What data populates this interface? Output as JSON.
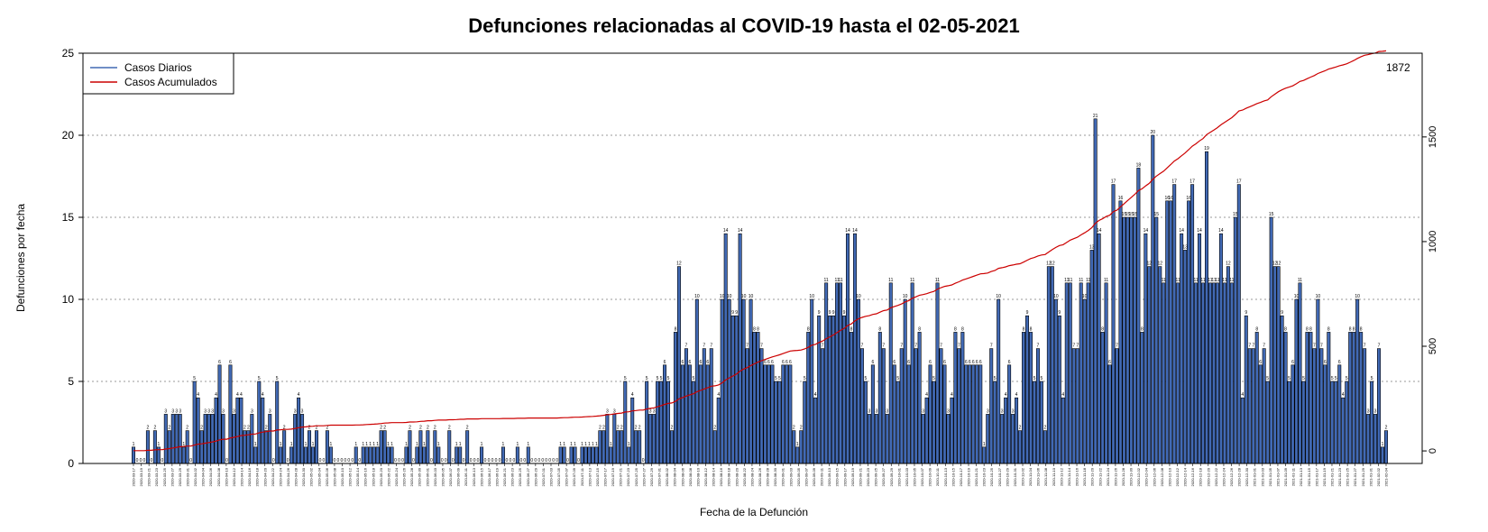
{
  "chart_data": {
    "type": "bar",
    "title": "Defunciones relacionadas al COVID-19 hasta el 02-05-2021",
    "xlabel": "Fecha de la Defunción",
    "ylabel": "Defunciones por fecha",
    "ylim": [
      0,
      25
    ],
    "yticks": [
      0,
      5,
      10,
      15,
      20,
      25
    ],
    "y2lim": [
      -60,
      1900
    ],
    "y2ticks": [
      0,
      500,
      1000,
      1500
    ],
    "grid": "horizontal dotted",
    "legend_position": "top-left",
    "cumulative_end_label": "1872",
    "date_start": "2020-03-17",
    "date_end": "2021-05-04",
    "x_tick_labels": [
      "2020-03-17",
      "2020-03-19",
      "2020-03-21",
      "2020-03-23",
      "2020-03-25",
      "2020-03-27",
      "2020-03-29",
      "2020-03-31",
      "2020-04-02",
      "2020-04-04",
      "2020-04-06",
      "2020-04-08",
      "2020-04-10",
      "2020-04-12",
      "2020-04-14",
      "2020-04-16",
      "2020-04-18",
      "2020-04-20",
      "2020-04-22",
      "2020-04-24",
      "2020-04-26",
      "2020-04-28",
      "2020-04-30",
      "2020-05-02",
      "2020-05-04",
      "2020-05-06",
      "2020-05-08",
      "2020-05-10",
      "2020-05-12",
      "2020-05-14",
      "2020-05-16",
      "2020-05-18",
      "2020-05-20",
      "2020-05-22",
      "2020-05-24",
      "2020-05-26",
      "2020-05-28",
      "2020-05-30",
      "2020-06-01",
      "2020-06-03",
      "2020-06-05",
      "2020-06-07",
      "2020-06-09",
      "2020-06-11",
      "2020-06-13",
      "2020-06-15",
      "2020-06-17",
      "2020-06-19",
      "2020-06-21",
      "2020-06-23",
      "2020-06-25",
      "2020-06-27",
      "2020-06-29",
      "2020-07-01",
      "2020-07-03",
      "2020-07-05",
      "2020-07-07",
      "2020-07-09",
      "2020-07-11",
      "2020-07-13",
      "2020-07-15",
      "2020-07-17",
      "2020-07-19",
      "2020-07-21",
      "2020-07-23",
      "2020-07-25",
      "2020-07-27",
      "2020-07-29",
      "2020-07-31",
      "2020-08-02",
      "2020-08-04",
      "2020-08-06",
      "2020-08-08",
      "2020-08-10",
      "2020-08-12",
      "2020-08-14",
      "2020-08-16",
      "2020-08-18",
      "2020-08-20",
      "2020-08-22",
      "2020-08-24",
      "2020-08-26",
      "2020-08-28",
      "2020-08-30",
      "2020-09-01",
      "2020-09-03",
      "2020-09-05",
      "2020-09-07",
      "2020-09-09",
      "2020-09-11",
      "2020-09-13",
      "2020-09-15",
      "2020-09-17",
      "2020-09-19",
      "2020-09-21",
      "2020-09-23",
      "2020-09-25",
      "2020-09-27",
      "2020-09-29",
      "2020-10-01",
      "2020-10-03",
      "2020-10-05",
      "2020-10-07",
      "2020-10-09",
      "2020-10-11",
      "2020-10-13",
      "2020-10-15",
      "2020-10-17",
      "2020-10-19",
      "2020-10-21",
      "2020-10-23",
      "2020-10-25",
      "2020-10-27",
      "2020-10-29",
      "2020-10-31",
      "2020-11-02",
      "2020-11-04",
      "2020-11-06",
      "2020-11-08",
      "2020-11-10",
      "2020-11-12",
      "2020-11-14",
      "2020-11-16",
      "2020-11-18",
      "2020-11-20",
      "2020-11-22",
      "2020-11-24",
      "2020-11-26",
      "2020-11-28",
      "2020-11-30",
      "2020-12-02",
      "2020-12-04",
      "2020-12-06",
      "2020-12-08",
      "2020-12-10",
      "2020-12-12",
      "2020-12-14",
      "2020-12-16",
      "2020-12-18",
      "2020-12-20",
      "2020-12-22",
      "2020-12-24",
      "2020-12-26",
      "2020-12-28",
      "2020-12-30",
      "2021-01-01",
      "2021-01-03",
      "2021-01-05",
      "2021-01-07",
      "2021-01-09",
      "2021-01-11",
      "2021-01-13",
      "2021-01-15",
      "2021-01-17",
      "2021-01-19",
      "2021-01-21",
      "2021-01-23",
      "2021-01-25",
      "2021-01-27",
      "2021-01-29",
      "2021-01-31",
      "2021-02-02",
      "2021-02-04"
    ],
    "series": [
      {
        "name": "Casos Diarios",
        "color": "#4169b4",
        "values": [
          1,
          0,
          0,
          0,
          2,
          0,
          2,
          1,
          0,
          3,
          2,
          3,
          3,
          3,
          1,
          2,
          0,
          5,
          4,
          2,
          3,
          3,
          3,
          4,
          6,
          3,
          0,
          6,
          3,
          4,
          4,
          2,
          2,
          3,
          1,
          5,
          4,
          2,
          3,
          0,
          5,
          1,
          2,
          0,
          1,
          3,
          4,
          3,
          1,
          2,
          1,
          2,
          0,
          0,
          2,
          1,
          0,
          0,
          0,
          0,
          0,
          0,
          1,
          0,
          1,
          1,
          1,
          1,
          1,
          2,
          2,
          1,
          1,
          0,
          0,
          0,
          1,
          2,
          0,
          1,
          2,
          1,
          2,
          0,
          2,
          1,
          0,
          0,
          2,
          0,
          1,
          1,
          0,
          2,
          0,
          0,
          0,
          1,
          0,
          0,
          0,
          0,
          0,
          1,
          0,
          0,
          0,
          1,
          0,
          0,
          1,
          0,
          0,
          0,
          0,
          0,
          0,
          0,
          0,
          1,
          1,
          0,
          1,
          1,
          0,
          1,
          1,
          1,
          1,
          1,
          2,
          2,
          3,
          1,
          3,
          2,
          2,
          5,
          1,
          4,
          2,
          2,
          0,
          5,
          3,
          3,
          5,
          5,
          6,
          5,
          2,
          8,
          12,
          6,
          7,
          6,
          5,
          10,
          6,
          7,
          6,
          7,
          2,
          4,
          10,
          14,
          10,
          9,
          9,
          14,
          10,
          7,
          10,
          8,
          8,
          7,
          6,
          6,
          6,
          5,
          5,
          6,
          6,
          6,
          2,
          1,
          2,
          5,
          8,
          10,
          4,
          9,
          7,
          11,
          9,
          9,
          11,
          11,
          9,
          14,
          8,
          14,
          10,
          7,
          5,
          3,
          6,
          3,
          8,
          7,
          3,
          11,
          6,
          5,
          7,
          10,
          6,
          11,
          7,
          8,
          3,
          4,
          6,
          5,
          11,
          7,
          6,
          3,
          4,
          8,
          7,
          8,
          6,
          6,
          6,
          6,
          6,
          1,
          3,
          7,
          5,
          10,
          3,
          4,
          6,
          3,
          4,
          2,
          8,
          9,
          8,
          5,
          7,
          5,
          2,
          12,
          12,
          10,
          9,
          4,
          11,
          11,
          7,
          7,
          11,
          10,
          11,
          13,
          21,
          14,
          8,
          11,
          6,
          17,
          7,
          16,
          15,
          15,
          15,
          15,
          18,
          8,
          14,
          12,
          20,
          15,
          12,
          11,
          16,
          16,
          17,
          11,
          14,
          13,
          16,
          17,
          11,
          14,
          11,
          19,
          11,
          11,
          11,
          14,
          11,
          12,
          11,
          15,
          17,
          4,
          9,
          7,
          7,
          8,
          6,
          7,
          5,
          15,
          12,
          12,
          9,
          8,
          5,
          6,
          10,
          11,
          5,
          8,
          8,
          7,
          10,
          7,
          6,
          8,
          5,
          5,
          6,
          4,
          5,
          8,
          8,
          10,
          8,
          7,
          3,
          5,
          3,
          7,
          1,
          2
        ]
      },
      {
        "name": "Casos Acumulados",
        "color": "#cc0000",
        "values": []
      }
    ]
  }
}
